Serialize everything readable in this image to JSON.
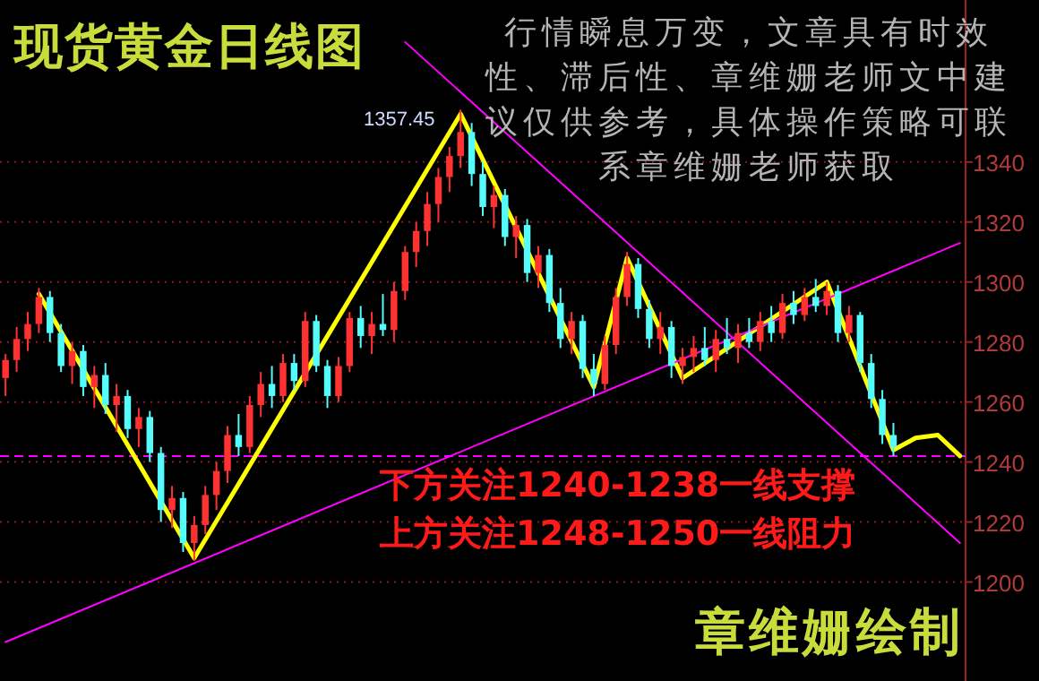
{
  "chart_data": {
    "type": "candlestick",
    "title": "现货黄金日线图",
    "annotations": [
      "行情瞬息万变，文章具有时效性、滞后性、章维姗老师文中建议仅供参考，具体操作策略可联系章维姗老师获取",
      "下方关注1240-1238一线支撑",
      "上方关注1248-1250一线阻力",
      "章维姗绘制",
      "1357.45"
    ],
    "categories": [
      null,
      null,
      null,
      null,
      null,
      null,
      null,
      null,
      null,
      null,
      null,
      null,
      null,
      null,
      null,
      null,
      null,
      null,
      null,
      null,
      null,
      null,
      null,
      null,
      null,
      null,
      null,
      null,
      null,
      null,
      null,
      null,
      null,
      null,
      null,
      null,
      null,
      null,
      null,
      null,
      null,
      null,
      null,
      null,
      null,
      null,
      null,
      null,
      null,
      null,
      null,
      null,
      null,
      null,
      null,
      null,
      null,
      null,
      null,
      null,
      null,
      null,
      null,
      null,
      null,
      null,
      null,
      null,
      null,
      null,
      null,
      null,
      null,
      null,
      null,
      null,
      null,
      null,
      null,
      null,
      null,
      null,
      null,
      null,
      null,
      null,
      null
    ],
    "ohlc": [
      [
        1268,
        1276,
        1262,
        1274
      ],
      [
        1274,
        1285,
        1270,
        1281
      ],
      [
        1281,
        1290,
        1277,
        1286
      ],
      [
        1286,
        1298,
        1283,
        1295
      ],
      [
        1295,
        1297,
        1280,
        1283
      ],
      [
        1283,
        1286,
        1270,
        1272
      ],
      [
        1272,
        1280,
        1266,
        1277
      ],
      [
        1277,
        1279,
        1262,
        1265
      ],
      [
        1265,
        1272,
        1258,
        1269
      ],
      [
        1269,
        1273,
        1256,
        1259
      ],
      [
        1259,
        1266,
        1250,
        1262
      ],
      [
        1262,
        1264,
        1248,
        1251
      ],
      [
        1251,
        1258,
        1245,
        1255
      ],
      [
        1255,
        1257,
        1240,
        1243
      ],
      [
        1243,
        1245,
        1220,
        1224
      ],
      [
        1224,
        1232,
        1218,
        1228
      ],
      [
        1228,
        1230,
        1210,
        1213
      ],
      [
        1213,
        1222,
        1207,
        1219
      ],
      [
        1219,
        1232,
        1216,
        1229
      ],
      [
        1229,
        1240,
        1224,
        1237
      ],
      [
        1237,
        1252,
        1233,
        1249
      ],
      [
        1249,
        1256,
        1242,
        1245
      ],
      [
        1245,
        1262,
        1243,
        1259
      ],
      [
        1259,
        1270,
        1255,
        1266
      ],
      [
        1266,
        1272,
        1258,
        1262
      ],
      [
        1262,
        1276,
        1260,
        1273
      ],
      [
        1273,
        1276,
        1264,
        1267
      ],
      [
        1267,
        1290,
        1265,
        1287
      ],
      [
        1287,
        1289,
        1270,
        1272
      ],
      [
        1272,
        1274,
        1258,
        1262
      ],
      [
        1262,
        1275,
        1260,
        1272
      ],
      [
        1272,
        1290,
        1270,
        1288
      ],
      [
        1288,
        1292,
        1278,
        1282
      ],
      [
        1282,
        1290,
        1276,
        1286
      ],
      [
        1286,
        1296,
        1282,
        1284
      ],
      [
        1284,
        1300,
        1280,
        1297
      ],
      [
        1297,
        1312,
        1294,
        1310
      ],
      [
        1310,
        1320,
        1305,
        1317
      ],
      [
        1317,
        1330,
        1312,
        1326
      ],
      [
        1326,
        1338,
        1320,
        1335
      ],
      [
        1335,
        1345,
        1330,
        1342
      ],
      [
        1342,
        1357.45,
        1338,
        1350
      ],
      [
        1350,
        1353,
        1332,
        1336
      ],
      [
        1336,
        1340,
        1322,
        1325
      ],
      [
        1325,
        1332,
        1318,
        1329
      ],
      [
        1329,
        1331,
        1312,
        1315
      ],
      [
        1315,
        1322,
        1308,
        1319
      ],
      [
        1319,
        1321,
        1300,
        1303
      ],
      [
        1303,
        1312,
        1298,
        1309
      ],
      [
        1309,
        1311,
        1290,
        1293
      ],
      [
        1293,
        1298,
        1278,
        1281
      ],
      [
        1281,
        1290,
        1276,
        1287
      ],
      [
        1287,
        1289,
        1268,
        1271
      ],
      [
        1271,
        1276,
        1262,
        1266
      ],
      [
        1266,
        1282,
        1264,
        1279
      ],
      [
        1279,
        1298,
        1276,
        1295
      ],
      [
        1295,
        1310,
        1292,
        1306
      ],
      [
        1306,
        1308,
        1288,
        1291
      ],
      [
        1291,
        1294,
        1278,
        1281
      ],
      [
        1281,
        1290,
        1276,
        1285
      ],
      [
        1285,
        1287,
        1268,
        1272
      ],
      [
        1272,
        1278,
        1266,
        1275
      ],
      [
        1275,
        1282,
        1270,
        1278
      ],
      [
        1278,
        1285,
        1272,
        1274
      ],
      [
        1274,
        1284,
        1270,
        1281
      ],
      [
        1281,
        1288,
        1276,
        1278
      ],
      [
        1278,
        1286,
        1273,
        1283
      ],
      [
        1283,
        1288,
        1278,
        1280
      ],
      [
        1280,
        1290,
        1277,
        1287
      ],
      [
        1287,
        1292,
        1280,
        1283
      ],
      [
        1283,
        1296,
        1281,
        1293
      ],
      [
        1293,
        1297,
        1286,
        1289
      ],
      [
        1289,
        1298,
        1287,
        1295
      ],
      [
        1295,
        1301,
        1290,
        1292
      ],
      [
        1292,
        1300,
        1289,
        1297
      ],
      [
        1297,
        1299,
        1280,
        1283
      ],
      [
        1283,
        1292,
        1280,
        1289
      ],
      [
        1289,
        1290,
        1270,
        1273
      ],
      [
        1273,
        1276,
        1258,
        1261
      ],
      [
        1261,
        1264,
        1246,
        1249
      ],
      [
        1249,
        1253,
        1242,
        1245
      ],
      null,
      null,
      null,
      null,
      null,
      null
    ],
    "colors": [
      "#ff3232",
      "#ff3232",
      "#ff3232",
      "#ff3232",
      "#54fcfc",
      "#54fcfc",
      "#ff3232",
      "#54fcfc",
      "#ff3232",
      "#54fcfc",
      "#ff3232",
      "#54fcfc",
      "#ff3232",
      "#54fcfc",
      "#54fcfc",
      "#ff3232",
      "#54fcfc",
      "#ff3232",
      "#ff3232",
      "#ff3232",
      "#ff3232",
      "#54fcfc",
      "#ff3232",
      "#ff3232",
      "#54fcfc",
      "#ff3232",
      "#54fcfc",
      "#ff3232",
      "#54fcfc",
      "#54fcfc",
      "#ff3232",
      "#ff3232",
      "#54fcfc",
      "#ff3232",
      "#54fcfc",
      "#ff3232",
      "#ff3232",
      "#ff3232",
      "#ff3232",
      "#ff3232",
      "#ff3232",
      "#ff3232",
      "#54fcfc",
      "#54fcfc",
      "#ff3232",
      "#54fcfc",
      "#ff3232",
      "#54fcfc",
      "#ff3232",
      "#54fcfc",
      "#54fcfc",
      "#ff3232",
      "#54fcfc",
      "#54fcfc",
      "#ff3232",
      "#ff3232",
      "#ff3232",
      "#54fcfc",
      "#54fcfc",
      "#ff3232",
      "#54fcfc",
      "#ff3232",
      "#ff3232",
      "#54fcfc",
      "#ff3232",
      "#54fcfc",
      "#ff3232",
      "#54fcfc",
      "#ff3232",
      "#54fcfc",
      "#ff3232",
      "#54fcfc",
      "#ff3232",
      "#54fcfc",
      "#ff3232",
      "#54fcfc",
      "#ff3232",
      "#54fcfc",
      "#54fcfc",
      "#54fcfc",
      "#54fcfc",
      null,
      null,
      null,
      null,
      null,
      null
    ],
    "series": [
      {
        "type": "line",
        "color": "#ffff00",
        "values": [
          null,
          null,
          null,
          1296,
          null,
          null,
          null,
          null,
          null,
          null,
          null,
          null,
          null,
          null,
          null,
          null,
          null,
          1208,
          null,
          null,
          null,
          null,
          null,
          null,
          null,
          null,
          null,
          null,
          null,
          null,
          null,
          null,
          null,
          null,
          null,
          null,
          null,
          null,
          null,
          null,
          null,
          1356,
          null,
          null,
          null,
          null,
          null,
          null,
          null,
          null,
          null,
          null,
          null,
          1265,
          null,
          null,
          1308,
          null,
          null,
          null,
          null,
          1268,
          null,
          null,
          null,
          null,
          null,
          null,
          null,
          null,
          null,
          null,
          null,
          null,
          1300,
          null,
          null,
          null,
          null,
          null,
          1244,
          null,
          1248,
          null,
          1249,
          null,
          1242
        ]
      },
      {
        "type": "line",
        "color": "#ff00ff",
        "values": [
          null,
          null,
          null,
          null,
          null,
          null,
          null,
          null,
          null,
          null,
          null,
          null,
          null,
          null,
          null,
          null,
          null,
          null,
          null,
          null,
          null,
          null,
          null,
          null,
          null,
          null,
          null,
          null,
          null,
          null,
          null,
          null,
          null,
          null,
          null,
          null,
          1380,
          null,
          null,
          null,
          null,
          null,
          null,
          null,
          null,
          null,
          null,
          null,
          null,
          null,
          null,
          null,
          null,
          null,
          null,
          null,
          null,
          null,
          null,
          null,
          null,
          null,
          null,
          null,
          null,
          null,
          null,
          null,
          null,
          null,
          null,
          null,
          null,
          null,
          null,
          null,
          null,
          null,
          null,
          null,
          null,
          null,
          null,
          null,
          null,
          null,
          1213
        ]
      },
      {
        "type": "line",
        "color": "#ff00ff",
        "values": [
          1180,
          null,
          null,
          null,
          null,
          null,
          null,
          null,
          null,
          null,
          null,
          null,
          null,
          null,
          null,
          null,
          null,
          null,
          null,
          null,
          null,
          null,
          null,
          null,
          null,
          null,
          null,
          null,
          null,
          null,
          null,
          null,
          null,
          null,
          null,
          null,
          null,
          null,
          null,
          null,
          null,
          null,
          null,
          null,
          null,
          null,
          null,
          null,
          null,
          null,
          null,
          null,
          null,
          null,
          null,
          null,
          null,
          null,
          null,
          null,
          null,
          null,
          null,
          null,
          null,
          null,
          null,
          null,
          null,
          null,
          null,
          null,
          null,
          null,
          null,
          null,
          null,
          null,
          null,
          null,
          null,
          null,
          null,
          null,
          null,
          null,
          1313
        ]
      }
    ],
    "ref_lines": [
      {
        "axis": "y",
        "value": 1242,
        "color": "#ff00ff",
        "line_style": "dashed"
      }
    ],
    "ylim": [
      1167,
      1394
    ],
    "yticks": [
      1200,
      1220,
      1240,
      1260,
      1280,
      1300,
      1320,
      1340
    ],
    "tick_labels": "y",
    "grid": "y"
  }
}
